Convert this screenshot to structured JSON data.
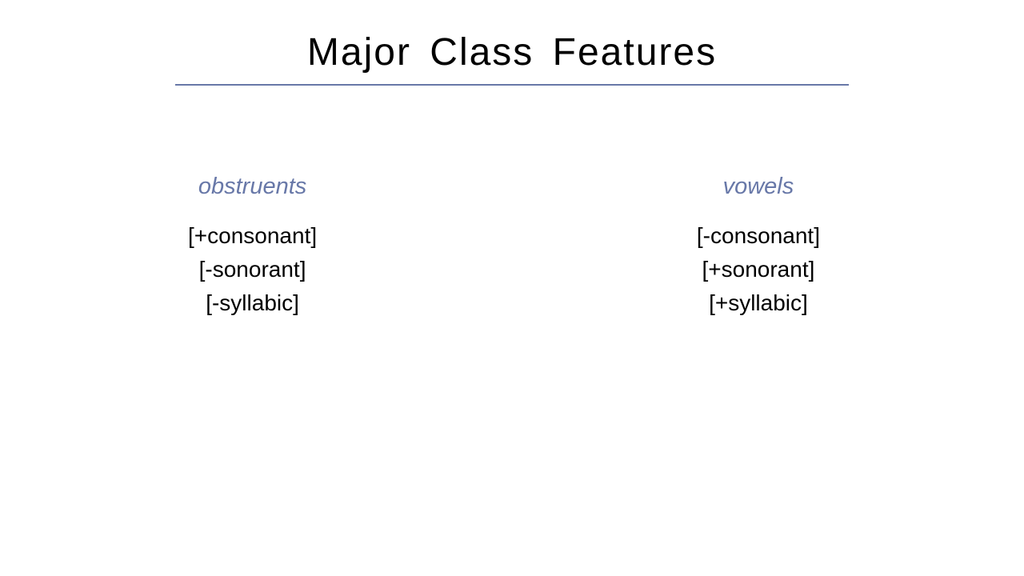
{
  "title": "Major Class Features",
  "colors": {
    "accent": "#6878a8",
    "text": "#000000",
    "background": "#ffffff"
  },
  "typography": {
    "title_fontsize": 48,
    "label_fontsize": 29,
    "feature_fontsize": 28
  },
  "layout": {
    "rule_width": 842,
    "columns_width": 900,
    "columns_top_margin": 110
  },
  "columns": {
    "left": {
      "label": "obstruents",
      "features": [
        "[+consonant]",
        "[-sonorant]",
        "[-syllabic]"
      ]
    },
    "right": {
      "label": "vowels",
      "features": [
        "[-consonant]",
        "[+sonorant]",
        "[+syllabic]"
      ]
    }
  }
}
